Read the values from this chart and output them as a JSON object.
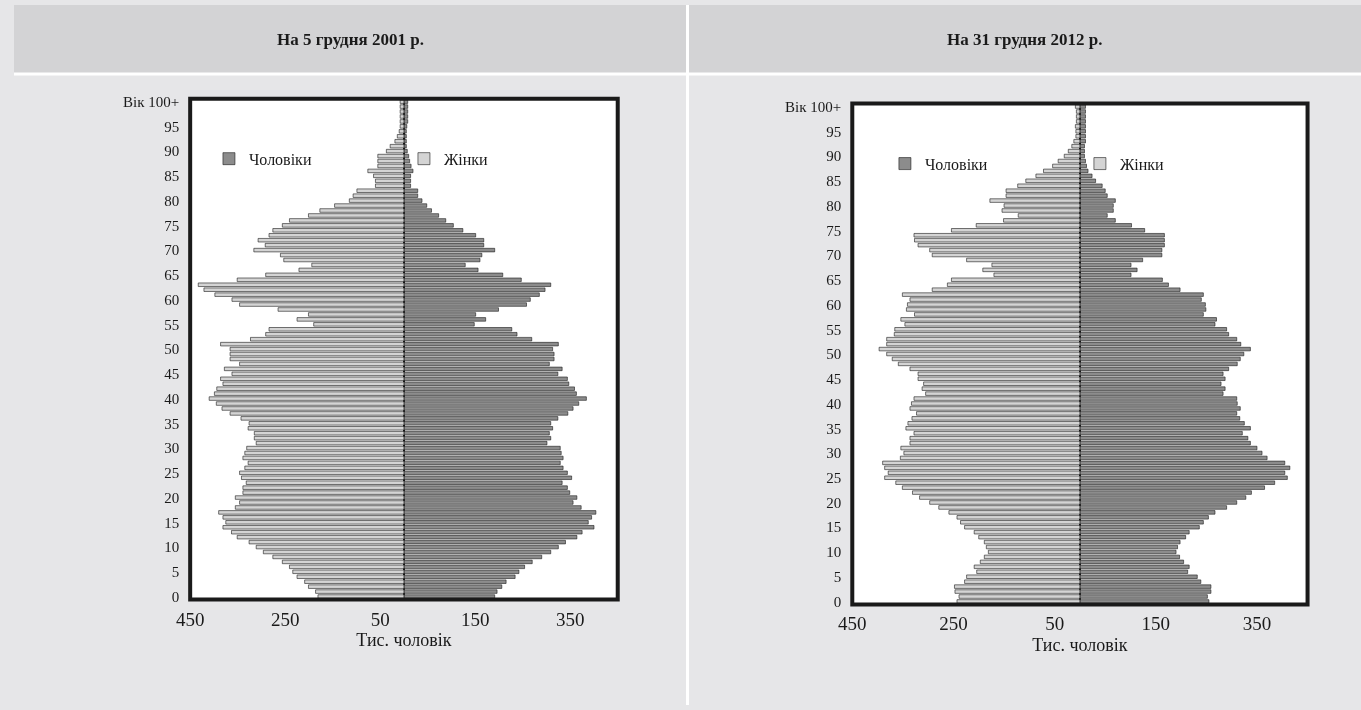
{
  "chart_data": [
    {
      "type": "bar",
      "orientation": "horizontal",
      "stacked": true,
      "title": "На 5 грудня 2001 р.",
      "xlabel": "Тис. чоловік",
      "legend": "top",
      "categories": [
        "Вік 100+",
        null,
        null,
        null,
        null,
        "95",
        null,
        null,
        null,
        null,
        "90",
        null,
        null,
        null,
        null,
        "85",
        null,
        null,
        null,
        null,
        "80",
        null,
        null,
        null,
        null,
        "75",
        null,
        null,
        null,
        null,
        "70",
        null,
        null,
        null,
        null,
        "65",
        null,
        null,
        null,
        null,
        "60",
        null,
        null,
        null,
        null,
        "55",
        null,
        null,
        null,
        null,
        "50",
        null,
        null,
        null,
        null,
        "45",
        null,
        null,
        null,
        null,
        "40",
        null,
        null,
        null,
        null,
        "35",
        null,
        null,
        null,
        null,
        "30",
        null,
        null,
        null,
        null,
        "25",
        null,
        null,
        null,
        null,
        "20",
        null,
        null,
        null,
        null,
        "15",
        null,
        null,
        null,
        null,
        "10",
        null,
        null,
        null,
        null,
        "5",
        null,
        null,
        null,
        null,
        "0"
      ],
      "xlim": [
        -450,
        450
      ],
      "xticks": [
        {
          "value": -450,
          "label": "450"
        },
        {
          "value": -250,
          "label": "250"
        },
        {
          "value": -50,
          "label": "50"
        },
        150,
        350
      ],
      "series": [
        {
          "name": "Чоловіки",
          "color": "#8c8c8c",
          "values": [
            8,
            8,
            8,
            8,
            8,
            6,
            5,
            5,
            5,
            5,
            7,
            10,
            12,
            15,
            19,
            14,
            14,
            14,
            29,
            29,
            38,
            48,
            58,
            73,
            88,
            104,
            124,
            151,
            168,
            168,
            191,
            164,
            160,
            129,
            156,
            208,
            247,
            309,
            297,
            285,
            266,
            258,
            199,
            151,
            172,
            148,
            227,
            238,
            269,
            325,
            313,
            316,
            316,
            306,
            333,
            324,
            344,
            347,
            359,
            363,
            384,
            368,
            356,
            345,
            324,
            309,
            313,
            306,
            309,
            301,
            329,
            331,
            335,
            329,
            335,
            344,
            353,
            333,
            344,
            349,
            364,
            356,
            373,
            404,
            395,
            388,
            400,
            375,
            364,
            340,
            325,
            309,
            290,
            270,
            254,
            242,
            234,
            215,
            206,
            196,
            191
          ]
        },
        {
          "name": "Жінки",
          "color": "#d4d4d4",
          "values": [
            -8,
            -8,
            -8,
            -8,
            -8,
            -8,
            -10,
            -14,
            -19,
            -29,
            -37,
            -55,
            -55,
            -55,
            -76,
            -64,
            -60,
            -60,
            -99,
            -107,
            -115,
            -146,
            -177,
            -201,
            -241,
            -256,
            -276,
            -284,
            -307,
            -292,
            -316,
            -260,
            -253,
            -194,
            -221,
            -291,
            -351,
            -433,
            -421,
            -398,
            -362,
            -346,
            -265,
            -201,
            -225,
            -190,
            -284,
            -291,
            -323,
            -386,
            -366,
            -366,
            -366,
            -346,
            -378,
            -362,
            -386,
            -381,
            -394,
            -399,
            -410,
            -395,
            -383,
            -366,
            -343,
            -326,
            -328,
            -315,
            -315,
            -311,
            -331,
            -335,
            -339,
            -328,
            -335,
            -346,
            -342,
            -332,
            -339,
            -339,
            -355,
            -346,
            -355,
            -390,
            -381,
            -375,
            -381,
            -363,
            -351,
            -326,
            -311,
            -296,
            -276,
            -256,
            -241,
            -234,
            -225,
            -209,
            -201,
            -186,
            -181
          ]
        }
      ]
    },
    {
      "type": "bar",
      "orientation": "horizontal",
      "stacked": true,
      "title": "На 31 грудня 2012 р.",
      "xlabel": "Тис. чоловік",
      "legend": "top",
      "categories": [
        "Вік 100+",
        null,
        null,
        null,
        null,
        "95",
        null,
        null,
        null,
        null,
        "90",
        null,
        null,
        null,
        null,
        "85",
        null,
        null,
        null,
        null,
        "80",
        null,
        null,
        null,
        null,
        "75",
        null,
        null,
        null,
        null,
        "70",
        null,
        null,
        null,
        null,
        "65",
        null,
        null,
        null,
        null,
        "60",
        null,
        null,
        null,
        null,
        "55",
        null,
        null,
        null,
        null,
        "50",
        null,
        null,
        null,
        null,
        "45",
        null,
        null,
        null,
        null,
        "40",
        null,
        null,
        null,
        null,
        "35",
        null,
        null,
        null,
        null,
        "30",
        null,
        null,
        null,
        null,
        "25",
        null,
        null,
        null,
        null,
        "20",
        null,
        null,
        null,
        null,
        "15",
        null,
        null,
        null,
        null,
        "10",
        null,
        null,
        null,
        null,
        "5",
        null,
        null,
        null,
        null,
        "0"
      ],
      "xlim": [
        -450,
        450
      ],
      "xticks": [
        {
          "value": -450,
          "label": "450"
        },
        {
          "value": -250,
          "label": "250"
        },
        {
          "value": -50,
          "label": "50"
        },
        150,
        350
      ],
      "series": [
        {
          "name": "Чоловіки",
          "color": "#8c8c8c",
          "values": [
            11,
            11,
            11,
            11,
            11,
            11,
            11,
            11,
            9,
            9,
            9,
            11,
            13,
            16,
            24,
            31,
            44,
            50,
            54,
            70,
            66,
            66,
            54,
            70,
            102,
            128,
            167,
            167,
            167,
            162,
            162,
            124,
            101,
            113,
            101,
            163,
            175,
            198,
            244,
            240,
            248,
            249,
            244,
            270,
            267,
            290,
            294,
            310,
            318,
            337,
            324,
            317,
            311,
            294,
            283,
            287,
            279,
            287,
            283,
            310,
            311,
            317,
            310,
            316,
            325,
            337,
            321,
            332,
            337,
            350,
            360,
            370,
            405,
            415,
            405,
            410,
            385,
            365,
            339,
            328,
            310,
            290,
            267,
            254,
            244,
            236,
            216,
            209,
            198,
            193,
            190,
            197,
            205,
            216,
            213,
            232,
            239,
            259,
            259,
            252,
            255
          ]
        },
        {
          "name": "Жінки",
          "color": "#d4d4d4",
          "values": [
            -9,
            -7,
            -7,
            -7,
            -9,
            -8,
            -8,
            -12,
            -16,
            -23,
            -31,
            -43,
            -54,
            -72,
            -87,
            -107,
            -123,
            -146,
            -146,
            -178,
            -150,
            -154,
            -122,
            -151,
            -205,
            -254,
            -328,
            -327,
            -320,
            -297,
            -292,
            -224,
            -174,
            -192,
            -170,
            -254,
            -262,
            -292,
            -351,
            -336,
            -341,
            -343,
            -327,
            -354,
            -346,
            -366,
            -367,
            -382,
            -382,
            -397,
            -382,
            -371,
            -359,
            -336,
            -320,
            -320,
            -309,
            -312,
            -305,
            -328,
            -333,
            -336,
            -323,
            -332,
            -340,
            -344,
            -328,
            -336,
            -336,
            -354,
            -348,
            -355,
            -390,
            -386,
            -379,
            -386,
            -364,
            -351,
            -331,
            -317,
            -297,
            -279,
            -259,
            -243,
            -236,
            -228,
            -209,
            -200,
            -189,
            -185,
            -181,
            -189,
            -197,
            -209,
            -204,
            -224,
            -228,
            -248,
            -247,
            -239,
            -243
          ]
        }
      ]
    }
  ]
}
